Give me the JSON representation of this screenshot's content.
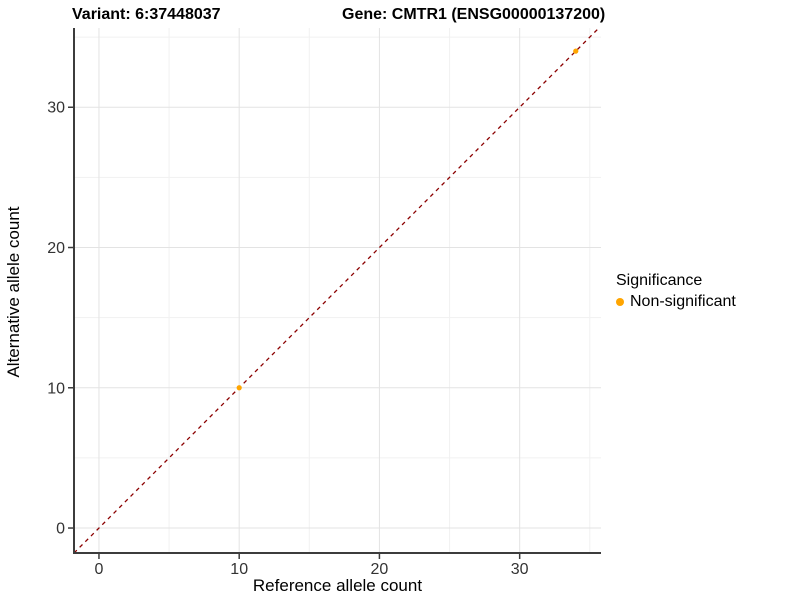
{
  "titles": {
    "variant": "Variant: 6:37448037",
    "gene": "Gene: CMTR1 (ENSG00000137200)"
  },
  "chart_data": {
    "type": "scatter",
    "xlabel": "Reference allele count",
    "ylabel": "Alternative allele count",
    "xlim": [
      -1.78,
      35.8
    ],
    "ylim": [
      -1.78,
      35.65
    ],
    "x_ticks": [
      0,
      10,
      20,
      30
    ],
    "y_ticks": [
      0,
      10,
      20,
      30
    ],
    "x_minor_ticks": [
      5,
      15,
      25,
      35
    ],
    "y_minor_ticks": [
      5,
      15,
      25,
      35
    ],
    "grid": true,
    "points": [
      {
        "x": 10,
        "y": 10,
        "series": "Non-significant"
      },
      {
        "x": 34,
        "y": 34,
        "series": "Non-significant"
      }
    ],
    "point_color": "#FFA500",
    "identity_line": {
      "equation": "y = x",
      "style": "dashed",
      "color": "#8B0000"
    },
    "colors": {
      "grid_major": "#e3e3e3",
      "grid_minor": "#f1f1f1",
      "axis_line": "#3c3c3c",
      "tick_label": "#333333"
    },
    "legend": {
      "title": "Significance",
      "position": "right",
      "entries": [
        {
          "label": "Non-significant",
          "color": "#FFA500"
        }
      ]
    }
  }
}
